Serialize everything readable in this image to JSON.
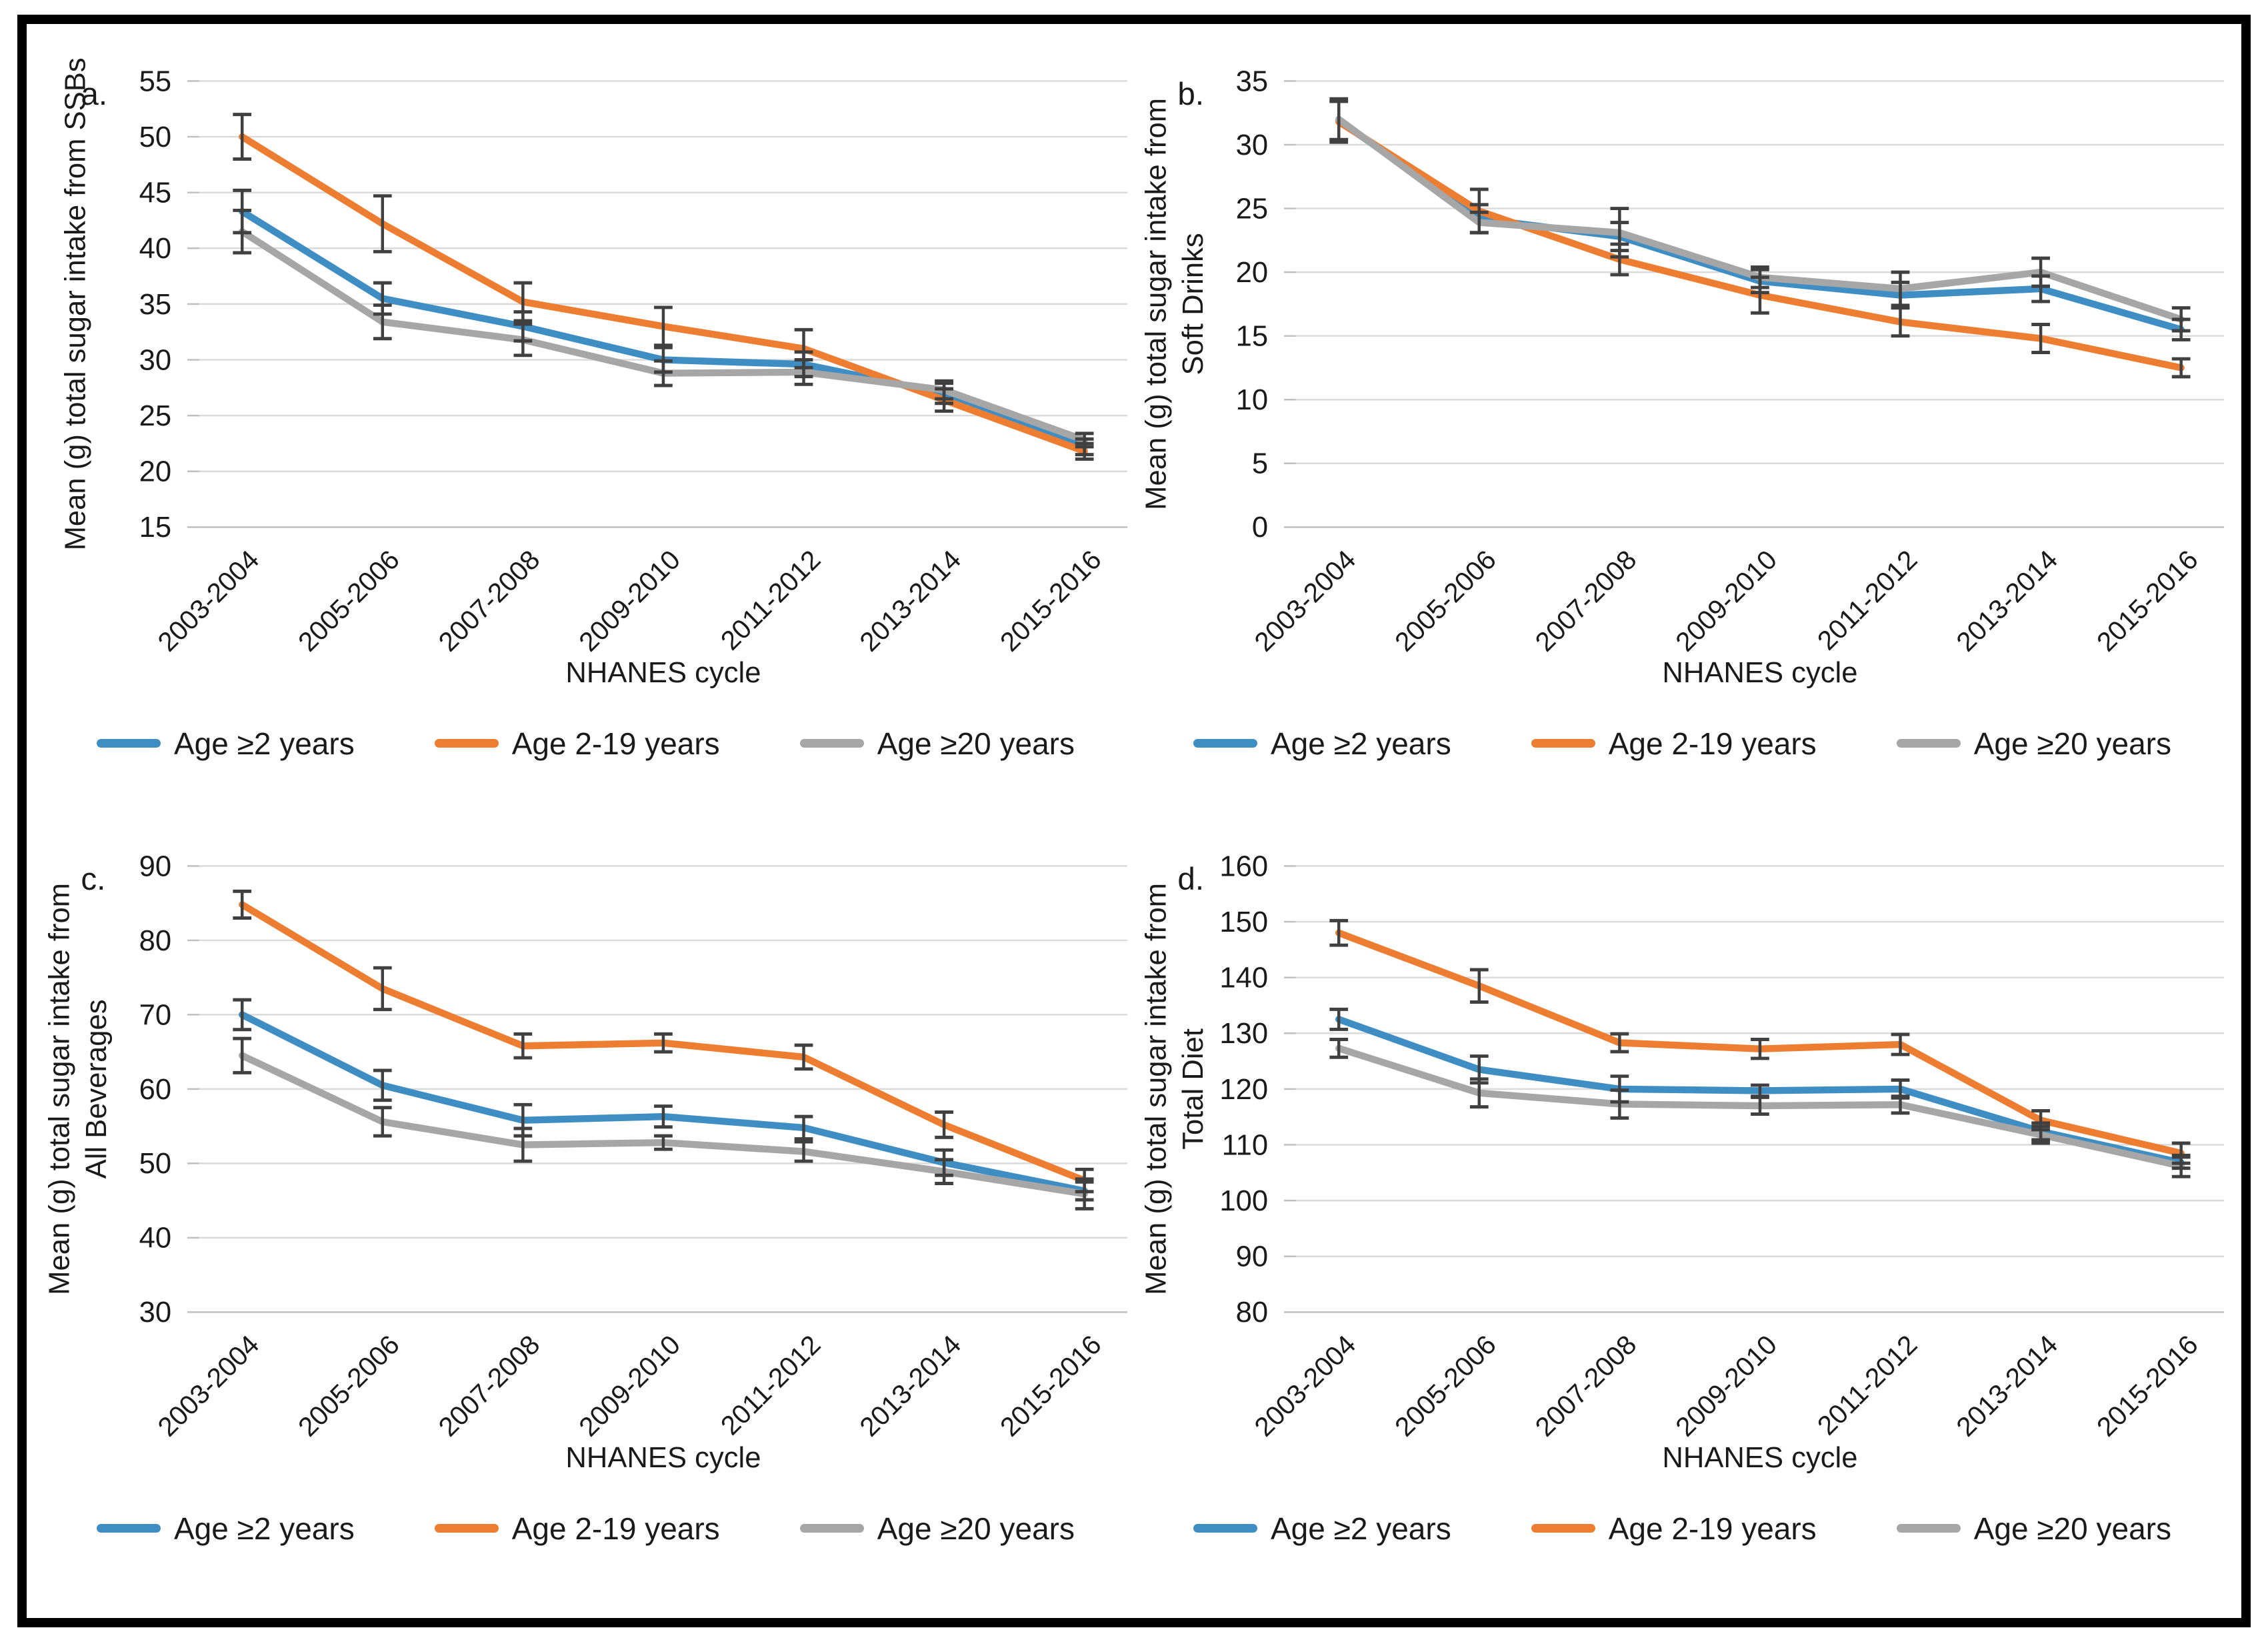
{
  "figure": {
    "background": "#ffffff",
    "frame_border_color": "#000000"
  },
  "colors": {
    "blue": "#3E8EC4",
    "orange": "#ED7D31",
    "gray": "#A6A6A6",
    "error_bar": "#404040",
    "gridline": "#DADADA",
    "axis_line": "#BFBFBF",
    "tick": "#BFBFBF",
    "text": "#1A1A1A"
  },
  "x_axis": {
    "label": "NHANES cycle",
    "categories": [
      "2003-2004",
      "2005-2006",
      "2007-2008",
      "2009-2010",
      "2011-2012",
      "2013-2014",
      "2015-2016"
    ]
  },
  "legend": {
    "items": [
      {
        "label": "Age ≥2 years",
        "color_key": "blue"
      },
      {
        "label": "Age 2-19 years",
        "color_key": "orange"
      },
      {
        "label": "Age ≥20 years",
        "color_key": "gray"
      }
    ]
  },
  "chart_data": [
    {
      "id": "a",
      "type": "line",
      "letter": "a.",
      "ylabel": "Mean (g) total sugar intake from SSBs",
      "ylabel_lines": [
        "Mean (g) total sugar intake from SSBs"
      ],
      "ylim": [
        15,
        55
      ],
      "ytick_step": 5,
      "grid": true,
      "legend_position": "bottom",
      "series": [
        {
          "name": "Age ≥2 years",
          "color_key": "blue",
          "values": [
            43.3,
            35.5,
            33.0,
            30.0,
            29.6,
            27.0,
            22.2
          ],
          "stderr": [
            1.9,
            1.4,
            1.3,
            1.1,
            1.1,
            0.9,
            0.7
          ]
        },
        {
          "name": "Age 2-19 years",
          "color_key": "orange",
          "values": [
            50.0,
            42.2,
            35.2,
            33.0,
            31.0,
            26.4,
            21.8
          ],
          "stderr": [
            2.0,
            2.5,
            1.7,
            1.7,
            1.7,
            1.0,
            0.7
          ]
        },
        {
          "name": "Age ≥20 years",
          "color_key": "gray",
          "values": [
            41.5,
            33.4,
            31.8,
            28.8,
            28.9,
            27.3,
            22.8
          ],
          "stderr": [
            1.9,
            1.5,
            1.4,
            1.1,
            1.1,
            0.8,
            0.6
          ]
        }
      ]
    },
    {
      "id": "b",
      "type": "line",
      "letter": "b.",
      "ylabel": "Mean (g) total sugar intake from Soft Drinks",
      "ylabel_lines": [
        "Mean (g) total sugar intake from",
        "Soft Drinks"
      ],
      "ylim": [
        0,
        35
      ],
      "ytick_step": 5,
      "grid": true,
      "legend_position": "bottom",
      "series": [
        {
          "name": "Age ≥2 years",
          "color_key": "blue",
          "values": [
            31.9,
            24.2,
            22.8,
            19.3,
            18.2,
            18.7,
            15.5
          ],
          "stderr": [
            1.5,
            1.1,
            1.1,
            0.9,
            1.0,
            1.0,
            0.8
          ]
        },
        {
          "name": "Age 2-19 years",
          "color_key": "orange",
          "values": [
            31.8,
            24.8,
            21.0,
            18.2,
            16.1,
            14.8,
            12.5
          ],
          "stderr": [
            1.6,
            1.7,
            1.2,
            1.4,
            1.1,
            1.1,
            0.7
          ]
        },
        {
          "name": "Age ≥20 years",
          "color_key": "gray",
          "values": [
            32.0,
            23.9,
            23.1,
            19.6,
            18.7,
            20.0,
            16.3
          ],
          "stderr": [
            1.6,
            0.8,
            1.9,
            0.8,
            1.3,
            1.1,
            0.9
          ]
        }
      ]
    },
    {
      "id": "c",
      "type": "line",
      "letter": "c.",
      "ylabel": "Mean (g) total sugar intake from All Beverages",
      "ylabel_lines": [
        "Mean (g) total sugar intake from",
        "All Beverages"
      ],
      "ylim": [
        30,
        90
      ],
      "ytick_step": 10,
      "grid": true,
      "legend_position": "bottom",
      "series": [
        {
          "name": "Age ≥2 years",
          "color_key": "blue",
          "values": [
            70.0,
            60.5,
            55.8,
            56.3,
            54.8,
            50.1,
            46.3
          ],
          "stderr": [
            2.0,
            2.0,
            2.1,
            1.4,
            1.5,
            1.7,
            1.2
          ]
        },
        {
          "name": "Age 2-19 years",
          "color_key": "orange",
          "values": [
            84.8,
            73.5,
            65.8,
            66.2,
            64.3,
            55.2,
            47.7
          ],
          "stderr": [
            1.8,
            2.8,
            1.6,
            1.2,
            1.6,
            1.7,
            1.5
          ]
        },
        {
          "name": "Age ≥20 years",
          "color_key": "gray",
          "values": [
            64.5,
            55.6,
            52.5,
            52.8,
            51.6,
            48.9,
            45.9
          ],
          "stderr": [
            2.3,
            1.9,
            2.2,
            0.9,
            1.3,
            1.6,
            2.0
          ]
        }
      ]
    },
    {
      "id": "d",
      "type": "line",
      "letter": "d.",
      "ylabel": "Mean (g) total sugar intake from Total Diet",
      "ylabel_lines": [
        "Mean (g) total sugar intake from",
        "Total Diet"
      ],
      "ylim": [
        80,
        160
      ],
      "ytick_step": 10,
      "grid": true,
      "legend_position": "bottom",
      "series": [
        {
          "name": "Age ≥2 years",
          "color_key": "blue",
          "values": [
            132.5,
            123.5,
            120.0,
            119.7,
            120.0,
            112.4,
            106.8
          ],
          "stderr": [
            1.8,
            2.4,
            2.3,
            1.0,
            1.6,
            1.5,
            1.0
          ]
        },
        {
          "name": "Age 2-19 years",
          "color_key": "orange",
          "values": [
            148.0,
            138.5,
            128.3,
            127.2,
            128.0,
            114.4,
            108.5
          ],
          "stderr": [
            2.2,
            2.9,
            1.6,
            1.7,
            1.8,
            1.7,
            1.8
          ]
        },
        {
          "name": "Age ≥20 years",
          "color_key": "gray",
          "values": [
            127.3,
            119.3,
            117.3,
            117.0,
            117.2,
            111.8,
            106.2
          ],
          "stderr": [
            1.6,
            2.5,
            2.5,
            1.5,
            1.5,
            1.5,
            1.9
          ]
        }
      ]
    }
  ]
}
